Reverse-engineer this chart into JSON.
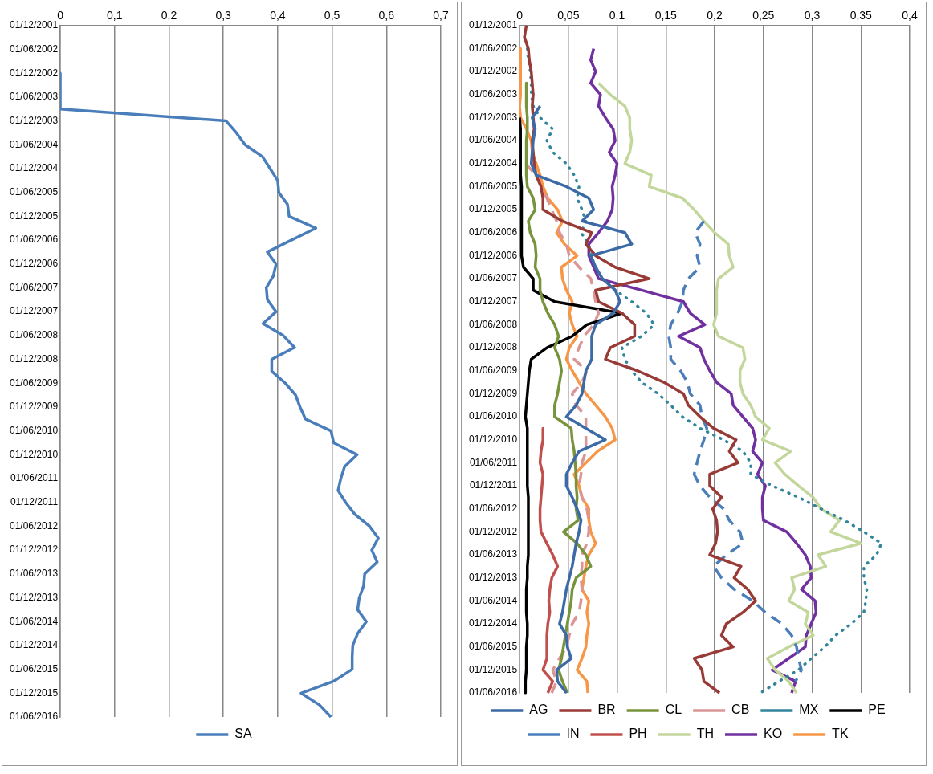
{
  "chart_data": [
    {
      "type": "line",
      "orientation": "horizontal",
      "categories": [
        "01/12/2001",
        null,
        "01/06/2002",
        null,
        "01/12/2002",
        null,
        "01/06/2003",
        null,
        "01/12/2003",
        null,
        "01/06/2004",
        null,
        "01/12/2004",
        null,
        "01/06/2005",
        null,
        "01/12/2005",
        null,
        "01/06/2006",
        null,
        "01/12/2006",
        null,
        "01/06/2007",
        null,
        "01/12/2007",
        null,
        "01/06/2008",
        null,
        "01/12/2008",
        null,
        "01/06/2009",
        null,
        "01/12/2009",
        null,
        "01/06/2010",
        null,
        "01/12/2010",
        null,
        "01/06/2011",
        null,
        "01/12/2011",
        null,
        "01/06/2012",
        null,
        "01/12/2012",
        null,
        "01/06/2013",
        null,
        "01/12/2013",
        null,
        "01/06/2014",
        null,
        "01/12/2014",
        null,
        "01/06/2015",
        null,
        "01/12/2015",
        null,
        "01/06/2016"
      ],
      "xlim": [
        0,
        0.7
      ],
      "xticks": [
        0,
        {
          "value": 0.1,
          "label": "0,1"
        },
        {
          "value": 0.2,
          "label": "0,2"
        },
        {
          "value": 0.3,
          "label": "0,3"
        },
        {
          "value": 0.4,
          "label": "0,4"
        },
        {
          "value": 0.5,
          "label": "0,5"
        },
        {
          "value": 0.6,
          "label": "0,6"
        },
        {
          "value": 0.7,
          "label": "0,7"
        }
      ],
      "grid": "x",
      "legend": "bottom",
      "series": [
        {
          "name": "SA",
          "color": "#4a7ebb",
          "line_style": "solid",
          "values": [
            null,
            null,
            null,
            null,
            0,
            0,
            0,
            0,
            0.305,
            0.324,
            0.34,
            0.372,
            0.386,
            0.4,
            0.402,
            0.418,
            0.421,
            0.47,
            0.425,
            0.381,
            0.397,
            0.392,
            0.379,
            0.381,
            0.397,
            0.373,
            0.41,
            0.431,
            0.389,
            0.389,
            0.414,
            0.433,
            0.441,
            0.451,
            0.498,
            0.503,
            0.546,
            0.523,
            0.516,
            0.511,
            0.525,
            0.542,
            0.569,
            0.585,
            0.573,
            0.583,
            0.56,
            0.558,
            0.55,
            0.547,
            0.563,
            0.547,
            0.538,
            0.537,
            0.537,
            0.503,
            0.443,
            0.477,
            0.498
          ]
        }
      ]
    },
    {
      "type": "line",
      "orientation": "horizontal",
      "categories": [
        "01/12/2001",
        null,
        "01/06/2002",
        null,
        "01/12/2002",
        null,
        "01/06/2003",
        null,
        "01/12/2003",
        null,
        "01/06/2004",
        null,
        "01/12/2004",
        null,
        "01/06/2005",
        null,
        "01/12/2005",
        null,
        "01/06/2006",
        null,
        "01/12/2006",
        null,
        "01/06/2007",
        null,
        "01/12/2007",
        null,
        "01/06/2008",
        null,
        "01/12/2008",
        null,
        "01/06/2009",
        null,
        "01/12/2009",
        null,
        "01/06/2010",
        null,
        "01/12/2010",
        null,
        "01/06/2011",
        null,
        "01/12/2011",
        null,
        "01/06/2012",
        null,
        "01/12/2012",
        null,
        "01/06/2013",
        null,
        "01/12/2013",
        null,
        "01/06/2014",
        null,
        "01/12/2014",
        null,
        "01/06/2015",
        null,
        "01/12/2015",
        null,
        "01/06/2016"
      ],
      "xlim": [
        0,
        0.4
      ],
      "xticks": [
        0,
        {
          "value": 0.05,
          "label": "0,05"
        },
        {
          "value": 0.1,
          "label": "0,1"
        },
        {
          "value": 0.15,
          "label": "0,15"
        },
        {
          "value": 0.2,
          "label": "0,2"
        },
        {
          "value": 0.25,
          "label": "0,25"
        },
        {
          "value": 0.3,
          "label": "0,3"
        },
        {
          "value": 0.35,
          "label": "0,35"
        },
        {
          "value": 0.4,
          "label": "0,4"
        }
      ],
      "grid": "x",
      "legend": "bottom",
      "series": [
        {
          "name": "AG",
          "color": "#3c6aa6",
          "line_style": "solid",
          "values": [
            null,
            null,
            null,
            null,
            null,
            null,
            null,
            0.021,
            0.013,
            0.016,
            0.014,
            0.013,
            0.012,
            0.017,
            0.048,
            0.071,
            0.076,
            0.064,
            0.108,
            0.115,
            0.073,
            0.078,
            0.085,
            0.098,
            0.103,
            0.096,
            0.078,
            0.074,
            0.074,
            0.074,
            0.068,
            0.066,
            0.064,
            0.058,
            0.048,
            0.068,
            0.088,
            0.061,
            0.054,
            0.048,
            0.048,
            0.054,
            0.059,
            0.063,
            0.061,
            0.058,
            0.056,
            0.054,
            0.051,
            0.048,
            0.046,
            0.044,
            0.041,
            0.048,
            0.049,
            0.053,
            0.038,
            0.039,
            0.048
          ]
        },
        {
          "name": "BR",
          "color": "#983a35",
          "line_style": "solid",
          "values": [
            0.007,
            0.005,
            0.009,
            0.01,
            0.012,
            0.013,
            0.014,
            0.013,
            0.014,
            0.015,
            0.013,
            0.014,
            0.015,
            0.017,
            0.022,
            0.024,
            0.024,
            0.044,
            0.074,
            0.068,
            0.078,
            0.098,
            0.133,
            0.078,
            0.081,
            0.105,
            0.118,
            0.118,
            0.093,
            0.088,
            0.121,
            0.148,
            0.168,
            0.173,
            0.185,
            0.199,
            0.222,
            0.215,
            0.224,
            0.195,
            0.195,
            0.207,
            0.198,
            0.202,
            0.203,
            0.201,
            0.195,
            0.227,
            0.22,
            0.234,
            0.242,
            0.229,
            0.212,
            0.207,
            0.219,
            0.179,
            0.187,
            0.189,
            0.205
          ]
        },
        {
          "name": "CL",
          "color": "#77933c",
          "line_style": "solid",
          "values": [
            null,
            null,
            null,
            null,
            null,
            0.007,
            0.007,
            0.007,
            0.008,
            0.008,
            0.007,
            0.007,
            0.007,
            0.007,
            0.008,
            0.014,
            0.016,
            0.009,
            0.011,
            0.016,
            0.017,
            0.016,
            0.021,
            0.021,
            0.024,
            0.029,
            0.036,
            0.04,
            0.036,
            0.041,
            0.043,
            0.041,
            0.039,
            0.036,
            0.036,
            0.053,
            0.054,
            0.056,
            0.057,
            0.058,
            0.058,
            0.059,
            0.058,
            0.06,
            0.045,
            0.059,
            0.068,
            0.073,
            0.058,
            0.054,
            0.053,
            0.051,
            0.049,
            0.047,
            0.045,
            0.043,
            0.04,
            0.044,
            0.049
          ]
        },
        {
          "name": "CB",
          "color": "#d99694",
          "line_style": "dashed",
          "values": [
            null,
            null,
            null,
            null,
            null,
            null,
            null,
            null,
            null,
            null,
            null,
            null,
            0.006,
            0.017,
            0.022,
            0.028,
            0.033,
            0.038,
            0.041,
            0.048,
            0.051,
            0.061,
            0.073,
            0.076,
            0.078,
            0.081,
            0.076,
            0.066,
            0.061,
            0.056,
            0.069,
            0.064,
            0.054,
            0.058,
            0.068,
            0.068,
            0.068,
            0.068,
            0.064,
            0.063,
            0.061,
            0.064,
            0.069,
            0.071,
            0.071,
            0.069,
            0.064,
            0.064,
            0.063,
            0.064,
            0.063,
            0.061,
            0.054,
            0.051,
            0.048,
            0.041,
            0.034,
            0.038,
            0.033
          ]
        },
        {
          "name": "MX",
          "color": "#31859c",
          "line_style": "dotted",
          "values": [
            null,
            null,
            0.008,
            0.009,
            0.011,
            0.012,
            0.012,
            0.014,
            0.021,
            0.034,
            0.028,
            0.034,
            0.048,
            0.056,
            0.061,
            0.059,
            0.064,
            0.068,
            0.063,
            0.071,
            0.073,
            0.078,
            0.085,
            0.098,
            0.115,
            0.13,
            0.138,
            0.125,
            0.105,
            0.108,
            0.115,
            0.125,
            0.142,
            0.155,
            0.167,
            0.185,
            0.209,
            0.229,
            0.237,
            0.237,
            0.259,
            0.286,
            0.309,
            0.333,
            0.353,
            0.371,
            0.366,
            0.353,
            0.353,
            0.356,
            0.355,
            0.353,
            0.34,
            0.324,
            0.313,
            0.299,
            0.286,
            0.266,
            0.247
          ]
        },
        {
          "name": "PE",
          "color": "#000000",
          "line_style": "solid",
          "values": [
            null,
            null,
            null,
            null,
            null,
            null,
            null,
            null,
            0,
            0.001,
            0.001,
            0.001,
            0.001,
            0.001,
            0.002,
            0.002,
            0.002,
            0.002,
            0.002,
            0.002,
            0.002,
            0.004,
            0.014,
            0.014,
            0.036,
            0.105,
            0.069,
            0.054,
            0.028,
            0.012,
            0.01,
            0.009,
            0.008,
            0.007,
            0.006,
            0.008,
            0.008,
            0.008,
            0.008,
            0.008,
            0.008,
            0.009,
            0.009,
            0.009,
            0.009,
            0.009,
            0.009,
            0.008,
            0.008,
            0.007,
            0.007,
            0.007,
            0.008,
            0.008,
            0.007,
            0.007,
            0.007,
            0.006,
            0.006
          ]
        },
        {
          "name": "IN",
          "color": "#4a7ebb",
          "line_style": "dashed",
          "values": [
            null,
            null,
            null,
            null,
            null,
            null,
            null,
            null,
            null,
            null,
            null,
            null,
            null,
            null,
            null,
            null,
            null,
            0.189,
            0.18,
            0.185,
            0.182,
            0.185,
            0.173,
            0.168,
            0.167,
            0.162,
            0.155,
            0.153,
            0.155,
            0.155,
            0.165,
            0.172,
            0.175,
            0.185,
            0.187,
            0.192,
            0.189,
            0.185,
            0.182,
            0.179,
            0.185,
            0.195,
            0.209,
            0.215,
            0.226,
            0.229,
            0.212,
            0.199,
            0.207,
            0.22,
            0.239,
            0.252,
            0.269,
            0.279,
            0.284,
            0.286,
            0.289,
            0.283,
            null
          ]
        },
        {
          "name": "PH",
          "color": "#c0504d",
          "line_style": "solid",
          "values": [
            null,
            null,
            null,
            null,
            null,
            null,
            null,
            null,
            null,
            null,
            null,
            null,
            null,
            null,
            null,
            null,
            null,
            null,
            null,
            null,
            null,
            null,
            null,
            null,
            null,
            null,
            null,
            null,
            null,
            null,
            null,
            null,
            null,
            null,
            null,
            0.024,
            0.024,
            0.022,
            0.021,
            0.024,
            0.023,
            0.022,
            0.021,
            0.021,
            0.022,
            0.028,
            0.034,
            0.039,
            0.033,
            0.031,
            0.03,
            0.031,
            0.029,
            0.028,
            0.028,
            0.028,
            0.024,
            0.034,
            0.029
          ]
        },
        {
          "name": "TH",
          "color": "#c3d69b",
          "line_style": "solid",
          "values": [
            null,
            null,
            null,
            null,
            null,
            0.081,
            0.093,
            0.108,
            0.113,
            0.113,
            0.115,
            0.113,
            0.108,
            0.135,
            0.133,
            0.167,
            0.179,
            0.189,
            0.2,
            0.214,
            0.215,
            0.219,
            0.204,
            0.202,
            0.202,
            0.202,
            0.199,
            0.204,
            0.229,
            0.231,
            0.226,
            0.226,
            0.229,
            0.237,
            0.242,
            0.256,
            0.249,
            0.278,
            0.262,
            0.272,
            0.286,
            0.301,
            0.309,
            0.328,
            0.319,
            0.35,
            0.306,
            0.314,
            0.279,
            0.282,
            0.276,
            0.296,
            0.293,
            0.301,
            0.276,
            0.254,
            0.262,
            0.276,
            0.284
          ]
        },
        {
          "name": "KO",
          "color": "#7030a0",
          "line_style": "solid",
          "values": [
            null,
            null,
            0.076,
            0.073,
            0.078,
            0.073,
            0.083,
            0.081,
            0.088,
            0.096,
            0.098,
            0.092,
            0.1,
            0.098,
            0.095,
            0.096,
            0.095,
            0.09,
            0.081,
            0.071,
            0.071,
            0.076,
            0.081,
            0.125,
            0.168,
            0.175,
            0.19,
            0.163,
            0.185,
            0.189,
            0.195,
            0.202,
            0.217,
            0.219,
            0.229,
            0.239,
            0.242,
            0.239,
            0.249,
            0.244,
            0.252,
            0.249,
            0.249,
            0.25,
            0.274,
            0.284,
            0.293,
            0.298,
            0.299,
            0.289,
            0.303,
            0.304,
            0.299,
            0.294,
            0.293,
            0.276,
            0.259,
            0.283,
            0.279
          ]
        },
        {
          "name": "TK",
          "color": "#f79646",
          "line_style": "solid",
          "values": [
            null,
            null,
            0.001,
            0.001,
            0.001,
            0.001,
            0.001,
            0,
            0.001,
            0.007,
            0.012,
            0.013,
            0.017,
            0.021,
            0.024,
            0.029,
            0.039,
            0.044,
            0.038,
            0.046,
            0.059,
            0.043,
            0.044,
            0.048,
            0.054,
            0.051,
            0.054,
            0.059,
            0.051,
            0.048,
            0.054,
            0.061,
            0.068,
            0.078,
            0.088,
            0.095,
            0.098,
            0.08,
            0.068,
            0.056,
            0.061,
            0.064,
            0.071,
            0.071,
            0.073,
            0.078,
            0.071,
            0.068,
            0.066,
            0.064,
            0.071,
            0.069,
            0.071,
            0.069,
            0.068,
            0.064,
            0.059,
            0.069,
            0.07
          ]
        }
      ]
    }
  ]
}
